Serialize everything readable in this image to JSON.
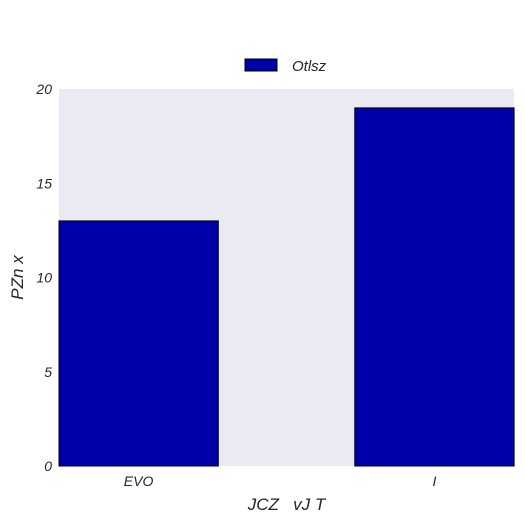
{
  "chart_data": {
    "type": "bar",
    "title": "",
    "xlabel": "JCZ   vJ T",
    "ylabel": "PZn x",
    "categories": [
      "EVO",
      "I"
    ],
    "series": [
      {
        "name": "Otlsz",
        "values": [
          13,
          19
        ]
      }
    ],
    "ylim": [
      0,
      20
    ],
    "yticks": [
      0,
      5,
      10,
      15,
      20
    ],
    "grid": false,
    "legend_position": "top-center",
    "colors": {
      "bar": "#0000a8",
      "bar_edge": "#000000",
      "plot_background": "#eaeaf2",
      "text": "#262626"
    }
  }
}
